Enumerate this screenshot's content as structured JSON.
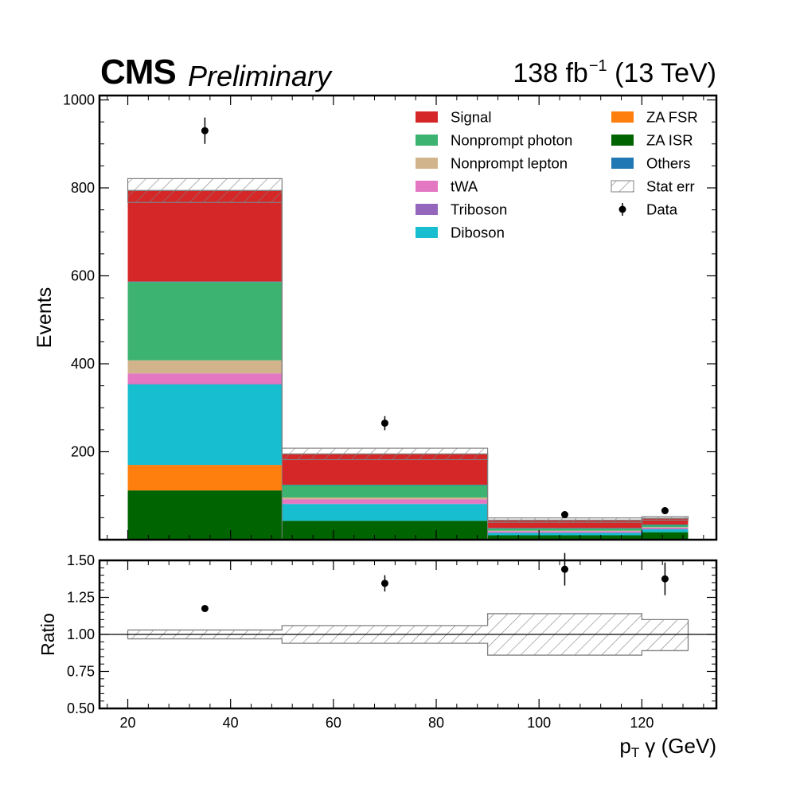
{
  "header": {
    "experiment": "CMS",
    "status": "Preliminary",
    "lumi": "138 fb",
    "lumi_exponent": "−1",
    "energy": "(13 TeV)"
  },
  "colors": {
    "Signal": "#d62728",
    "Nonprompt photon": "#3cb371",
    "Nonprompt lepton": "#d2b48c",
    "tWA": "#e377c2",
    "Triboson": "#9467bd",
    "Diboson": "#17becf",
    "ZA FSR": "#ff7f0e",
    "ZA ISR": "#006400",
    "Others": "#1f77b4"
  },
  "chart_data": [
    {
      "type": "bar",
      "subtype": "stacked-histogram",
      "xlabel": "",
      "ylabel": "Events",
      "bin_edges": [
        20,
        50,
        90,
        120,
        129
      ],
      "xlim": [
        14.5,
        134.5
      ],
      "ylim": [
        0,
        1010
      ],
      "yticks": [
        200,
        400,
        600,
        800,
        1000
      ],
      "stack_order": [
        "ZA ISR",
        "ZA FSR",
        "Diboson",
        "Triboson",
        "tWA",
        "Nonprompt lepton",
        "Nonprompt photon",
        "Others",
        "Signal"
      ],
      "series": [
        {
          "name": "ZA ISR",
          "values": [
            112,
            43,
            10,
            17
          ]
        },
        {
          "name": "ZA FSR",
          "values": [
            58,
            0,
            0,
            0
          ]
        },
        {
          "name": "Diboson",
          "values": [
            183,
            38,
            6,
            7
          ]
        },
        {
          "name": "Triboson",
          "values": [
            1,
            1,
            0.5,
            0.5
          ]
        },
        {
          "name": "tWA",
          "values": [
            24,
            10,
            3,
            3
          ]
        },
        {
          "name": "Nonprompt lepton",
          "values": [
            30,
            4,
            1,
            1
          ]
        },
        {
          "name": "Nonprompt photon",
          "values": [
            178,
            28,
            5,
            5
          ]
        },
        {
          "name": "Others",
          "values": [
            1,
            1,
            1,
            1
          ]
        },
        {
          "name": "Signal",
          "values": [
            207,
            70,
            18,
            14
          ]
        }
      ],
      "stat_err": [
        27,
        13,
        5,
        4
      ],
      "data": {
        "name": "Data",
        "x": [
          35,
          70,
          105,
          124.5
        ],
        "y": [
          930,
          265,
          57,
          66
        ],
        "yerr": [
          30,
          16,
          7.5,
          8
        ]
      },
      "legend": {
        "placement": "top-right",
        "columns": [
          [
            "Signal",
            "Nonprompt photon",
            "Nonprompt lepton",
            "tWA",
            "Triboson",
            "Diboson"
          ],
          [
            "ZA FSR",
            "ZA ISR",
            "Others",
            "Stat err",
            "Data"
          ]
        ]
      },
      "grid": false
    },
    {
      "type": "scatter",
      "subtype": "ratio-panel",
      "xlabel": "p",
      "xlabel_sub": "T",
      "xlabel_rest": "γ (GeV)",
      "ylabel": "Ratio",
      "xlim": [
        14.5,
        134.5
      ],
      "ylim": [
        0.5,
        1.5
      ],
      "xticks": [
        20,
        40,
        60,
        80,
        100,
        120
      ],
      "yticks": [
        "0.50",
        "0.75",
        "1.00",
        "1.25",
        "1.50"
      ],
      "ratio": {
        "x": [
          35,
          70,
          105,
          124.5
        ],
        "y": [
          1.175,
          1.345,
          1.44,
          1.375
        ],
        "yerr": [
          0.02,
          0.055,
          0.11,
          0.11
        ]
      },
      "unc_band": {
        "bin_edges": [
          20,
          50,
          90,
          120,
          129
        ],
        "low": [
          0.97,
          0.94,
          0.86,
          0.89
        ],
        "high": [
          1.03,
          1.06,
          1.14,
          1.1
        ]
      },
      "reference_line": 1.0,
      "grid": false
    }
  ]
}
